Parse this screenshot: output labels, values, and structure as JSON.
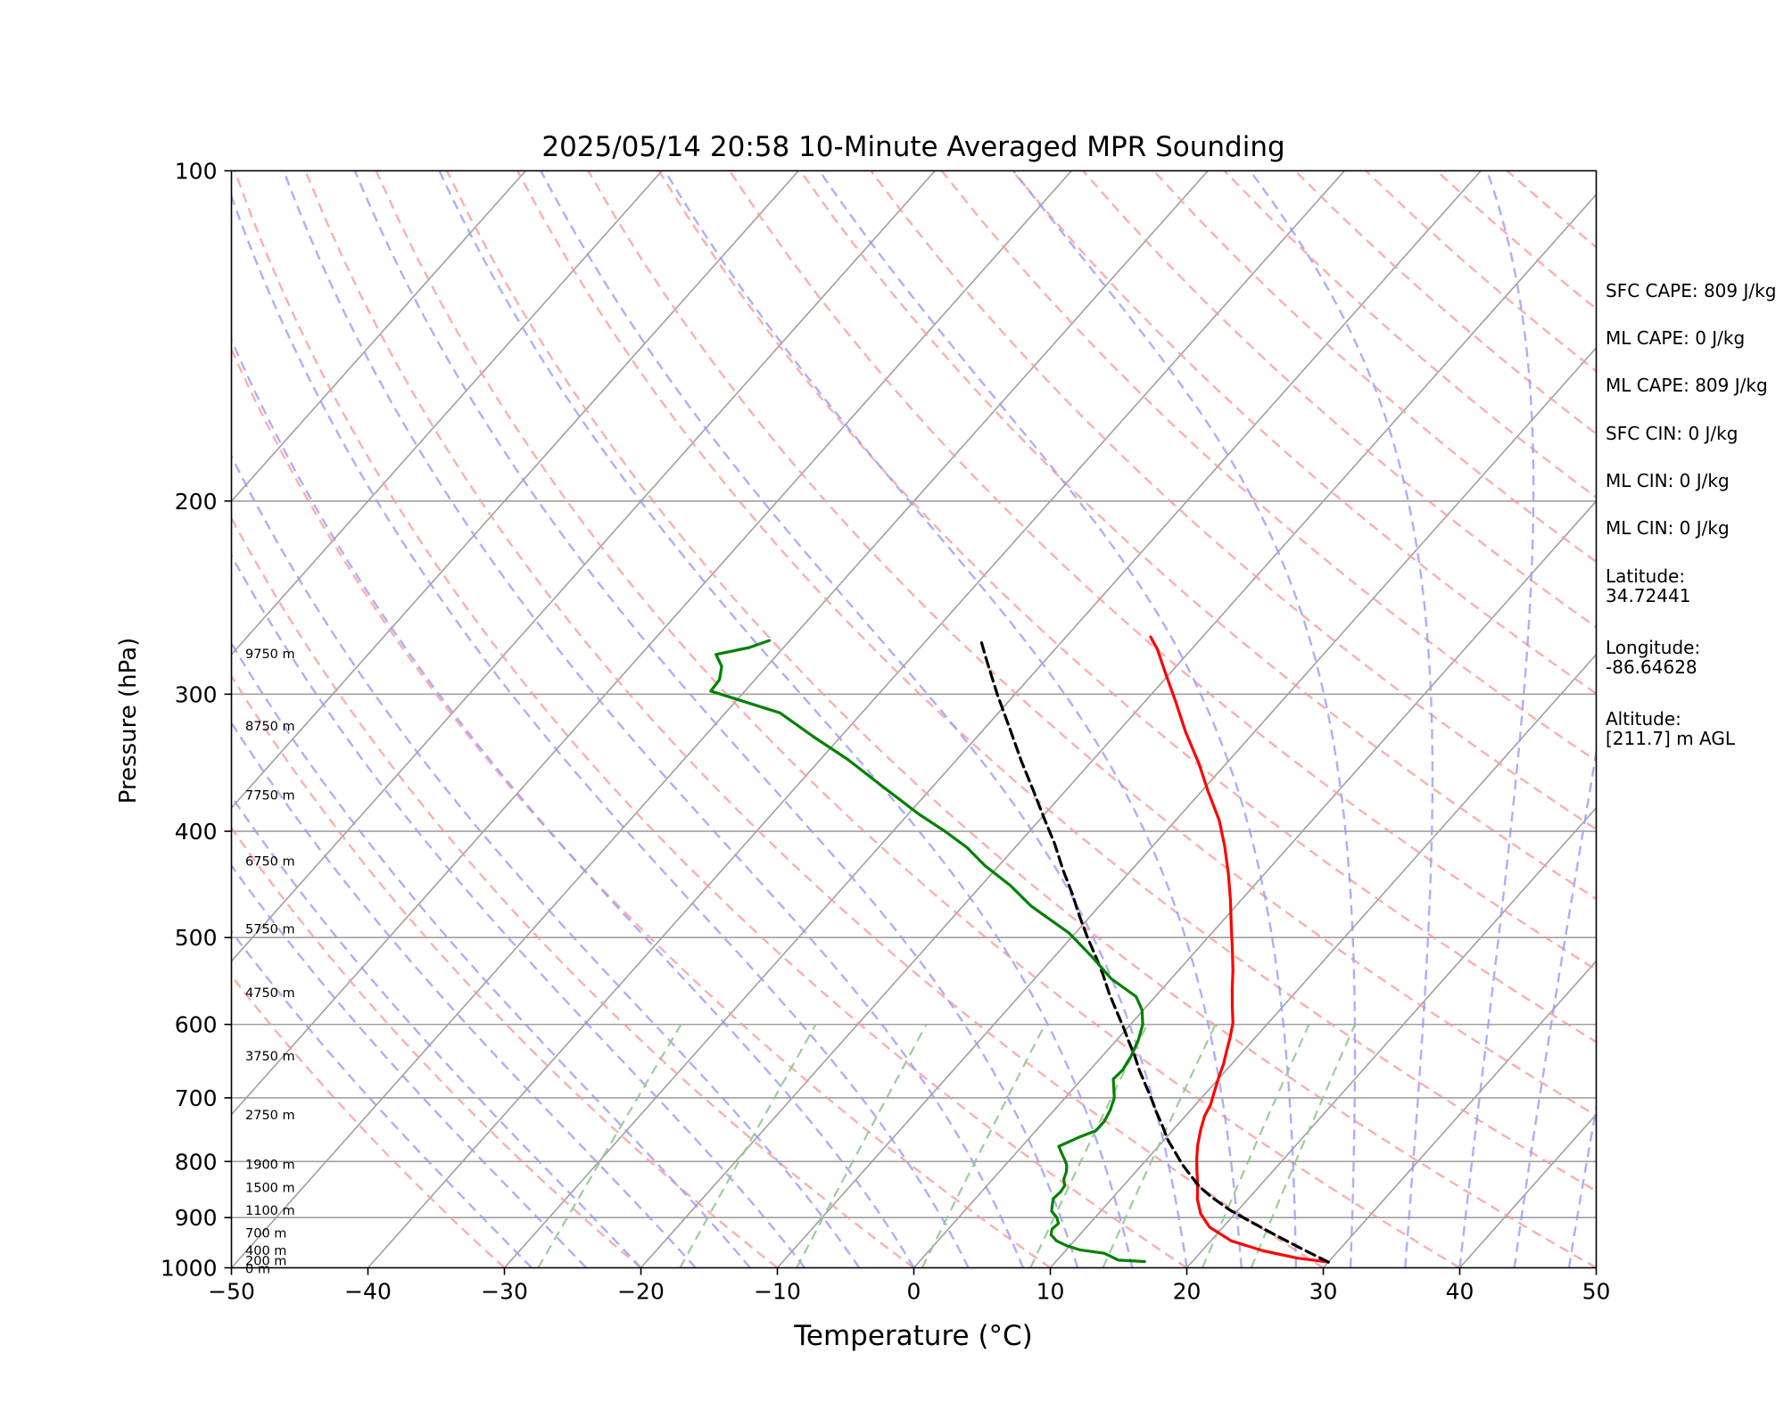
{
  "chart_data": {
    "type": "line",
    "title": "2025/05/14 20:58 10-Minute Averaged MPR Sounding",
    "xlabel": "Temperature (°C)",
    "ylabel": "Pressure (hPa)",
    "xlim": [
      -50,
      50
    ],
    "ylim": [
      1000,
      100
    ],
    "y_scale": "log",
    "skew_t": true,
    "x_ticks": [
      -50,
      -40,
      -30,
      -20,
      -10,
      0,
      10,
      20,
      30,
      40,
      50
    ],
    "x_tick_labels": [
      "−50",
      "−40",
      "−30",
      "−20",
      "−10",
      "0",
      "10",
      "20",
      "30",
      "40",
      "50"
    ],
    "y_ticks": [
      100,
      200,
      300,
      400,
      500,
      600,
      700,
      800,
      900,
      1000
    ],
    "y_tick_labels": [
      "100",
      "200",
      "300",
      "400",
      "500",
      "600",
      "700",
      "800",
      "900",
      "1000"
    ],
    "grid": true,
    "background_colors": {
      "isotherms": "#a0a0a0",
      "dry_adiabats": "#ff9999",
      "moist_adiabats": "#9999ff",
      "mixing_ratio_lines": "#90c890"
    },
    "series": [
      {
        "color": "#ff0000",
        "style": "solid",
        "points": [
          [
            30.0,
            988
          ],
          [
            27.5,
            980
          ],
          [
            24.5,
            965
          ],
          [
            21.5,
            945
          ],
          [
            19.0,
            918
          ],
          [
            17.5,
            893
          ],
          [
            16.3,
            866
          ],
          [
            15.3,
            838
          ],
          [
            14.5,
            818
          ],
          [
            13.6,
            795
          ],
          [
            12.8,
            773
          ],
          [
            12.0,
            748
          ],
          [
            11.4,
            727
          ],
          [
            11.1,
            710
          ],
          [
            10.5,
            690
          ],
          [
            9.9,
            670
          ],
          [
            9.4,
            652
          ],
          [
            8.8,
            635
          ],
          [
            8.2,
            618
          ],
          [
            7.4,
            598
          ],
          [
            6.3,
            578
          ],
          [
            5.2,
            558
          ],
          [
            4.0,
            536
          ],
          [
            2.6,
            513
          ],
          [
            0.9,
            487
          ],
          [
            -0.8,
            462
          ],
          [
            -2.6,
            438
          ],
          [
            -4.7,
            413
          ],
          [
            -6.8,
            391
          ],
          [
            -9.5,
            368
          ],
          [
            -12.0,
            347
          ],
          [
            -15.0,
            325
          ],
          [
            -17.7,
            305
          ],
          [
            -20.2,
            288
          ],
          [
            -22.5,
            273
          ],
          [
            -23.8,
            266
          ]
        ]
      },
      {
        "color": "#000000",
        "style": "dashed",
        "points": [
          [
            30.0,
            988
          ],
          [
            27.3,
            962
          ],
          [
            24.5,
            935
          ],
          [
            21.8,
            909
          ],
          [
            19.4,
            886
          ],
          [
            17.2,
            862
          ],
          [
            15.6,
            843
          ],
          [
            13.0,
            806
          ],
          [
            11.7,
            786
          ],
          [
            10.3,
            765
          ],
          [
            9.0,
            743
          ],
          [
            7.6,
            721
          ],
          [
            6.3,
            700
          ],
          [
            4.9,
            679
          ],
          [
            3.6,
            660
          ],
          [
            2.3,
            640
          ],
          [
            1.0,
            622
          ],
          [
            -0.3,
            604
          ],
          [
            -2.0,
            582
          ],
          [
            -3.6,
            562
          ],
          [
            -5.3,
            540
          ],
          [
            -7.0,
            520
          ],
          [
            -8.9,
            499
          ],
          [
            -10.8,
            478
          ],
          [
            -12.8,
            456
          ],
          [
            -15.0,
            434
          ],
          [
            -17.3,
            411
          ],
          [
            -19.8,
            389
          ],
          [
            -22.4,
            367
          ],
          [
            -25.2,
            345
          ],
          [
            -28.2,
            322
          ],
          [
            -31.3,
            300
          ],
          [
            -34.5,
            278
          ],
          [
            -36.0,
            268
          ]
        ]
      },
      {
        "color": "#008000",
        "style": "solid",
        "points": [
          [
            16.5,
            987
          ],
          [
            14.5,
            984
          ],
          [
            13.0,
            970
          ],
          [
            11.0,
            963
          ],
          [
            9.8,
            955
          ],
          [
            8.7,
            945
          ],
          [
            7.9,
            933
          ],
          [
            7.6,
            922
          ],
          [
            7.7,
            911
          ],
          [
            7.2,
            900
          ],
          [
            6.4,
            888
          ],
          [
            6.0,
            875
          ],
          [
            5.7,
            865
          ],
          [
            5.8,
            853
          ],
          [
            5.7,
            842
          ],
          [
            5.2,
            830
          ],
          [
            4.9,
            817
          ],
          [
            4.5,
            806
          ],
          [
            4.0,
            797
          ],
          [
            3.4,
            787
          ],
          [
            2.7,
            775
          ],
          [
            3.6,
            760
          ],
          [
            4.4,
            750
          ],
          [
            4.4,
            735
          ],
          [
            4.1,
            718
          ],
          [
            3.6,
            700
          ],
          [
            2.8,
            683
          ],
          [
            2.3,
            673
          ],
          [
            2.4,
            660
          ],
          [
            2.1,
            641
          ],
          [
            1.6,
            620
          ],
          [
            0.9,
            600
          ],
          [
            -0.1,
            582
          ],
          [
            -1.4,
            566
          ],
          [
            -4.4,
            545
          ],
          [
            -7.3,
            520
          ],
          [
            -10.5,
            495
          ],
          [
            -15.0,
            468
          ],
          [
            -17.9,
            448
          ],
          [
            -21.0,
            430
          ],
          [
            -23.5,
            414
          ],
          [
            -26.2,
            400
          ],
          [
            -29.2,
            386
          ],
          [
            -33.5,
            365
          ],
          [
            -38.0,
            344
          ],
          [
            -42.0,
            328
          ],
          [
            -46.0,
            312
          ],
          [
            -52.5,
            298
          ],
          [
            -52.6,
            291
          ],
          [
            -53.3,
            283
          ],
          [
            -54.5,
            276
          ],
          [
            -52.5,
            272
          ],
          [
            -51.5,
            268
          ]
        ]
      }
    ],
    "height_labels": [
      {
        "text": "0 m",
        "p": 1000
      },
      {
        "text": "200 m",
        "p": 983
      },
      {
        "text": "400 m",
        "p": 962
      },
      {
        "text": "700 m",
        "p": 928
      },
      {
        "text": "1100 m",
        "p": 885
      },
      {
        "text": "1500 m",
        "p": 843
      },
      {
        "text": "1900 m",
        "p": 803
      },
      {
        "text": "2750 m",
        "p": 724
      },
      {
        "text": "3750 m",
        "p": 640
      },
      {
        "text": "4750 m",
        "p": 560
      },
      {
        "text": "5750 m",
        "p": 490
      },
      {
        "text": "6750 m",
        "p": 425
      },
      {
        "text": "7750 m",
        "p": 370
      },
      {
        "text": "8750 m",
        "p": 320
      },
      {
        "text": "9750 m",
        "p": 275
      }
    ]
  },
  "side_info": {
    "sfc_cape": "SFC CAPE: 809 J/kg",
    "ml_cape_1": "ML CAPE: 0 J/kg",
    "ml_cape_2": "ML CAPE: 809 J/kg",
    "sfc_cin": "SFC CIN: 0 J/kg",
    "ml_cin_1": "ML CIN: 0 J/kg",
    "ml_cin_2": "ML CIN: 0 J/kg",
    "latitude": "Latitude:\n34.72441",
    "longitude": "Longitude:\n-86.64628",
    "altitude": "Altitude:\n[211.7] m AGL"
  }
}
